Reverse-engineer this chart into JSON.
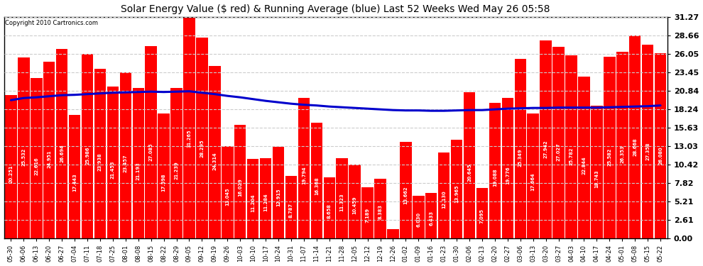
{
  "title": "Solar Energy Value ($ red) & Running Average (blue) Last 52 Weeks Wed May 26 05:58",
  "copyright": "Copyright 2010 Cartronics.com",
  "bar_color": "#ff0000",
  "line_color": "#0000cc",
  "background_color": "#ffffff",
  "plot_bg_color": "#ffffff",
  "grid_color": "#bbbbbb",
  "ylim": [
    0.0,
    31.27
  ],
  "yticks": [
    0.0,
    2.61,
    5.21,
    7.82,
    10.42,
    13.03,
    15.63,
    18.24,
    20.84,
    23.45,
    26.05,
    28.66,
    31.27
  ],
  "categories": [
    "05-30",
    "06-06",
    "06-13",
    "06-20",
    "06-27",
    "07-04",
    "07-11",
    "07-18",
    "07-25",
    "08-01",
    "08-08",
    "08-15",
    "08-22",
    "08-29",
    "09-05",
    "09-12",
    "09-19",
    "09-26",
    "10-03",
    "10-10",
    "10-17",
    "10-24",
    "10-31",
    "11-07",
    "11-14",
    "11-21",
    "11-28",
    "12-05",
    "12-12",
    "12-19",
    "12-26",
    "01-02",
    "01-09",
    "01-16",
    "01-23",
    "01-30",
    "02-06",
    "02-13",
    "02-20",
    "02-27",
    "03-06",
    "03-13",
    "03-20",
    "03-27",
    "04-03",
    "04-10",
    "04-17",
    "04-24",
    "05-01",
    "05-08",
    "05-15",
    "05-22"
  ],
  "values": [
    20.251,
    25.532,
    22.616,
    24.951,
    26.694,
    17.443,
    25.986,
    23.938,
    21.453,
    23.457,
    21.193,
    27.085,
    17.598,
    21.239,
    31.265,
    28.295,
    24.314,
    13.045,
    16.029,
    11.204,
    11.284,
    12.915,
    8.787,
    19.794,
    16.368,
    8.658,
    11.323,
    10.459,
    7.189,
    8.383,
    1.364,
    13.662,
    6.03,
    6.433,
    12.13,
    13.965,
    20.645,
    7.095,
    19.088,
    19.776,
    25.349,
    17.664,
    27.942,
    27.027,
    25.782,
    22.844,
    18.743,
    25.582,
    26.353,
    28.668,
    27.358,
    26.08
  ],
  "running_avg": [
    19.5,
    19.8,
    19.9,
    20.05,
    20.2,
    20.25,
    20.35,
    20.45,
    20.55,
    20.6,
    20.65,
    20.7,
    20.65,
    20.7,
    20.75,
    20.55,
    20.35,
    20.1,
    19.9,
    19.65,
    19.4,
    19.2,
    19.0,
    18.85,
    18.75,
    18.6,
    18.5,
    18.4,
    18.3,
    18.2,
    18.1,
    18.05,
    18.05,
    18.0,
    18.0,
    18.05,
    18.1,
    18.1,
    18.2,
    18.3,
    18.35,
    18.4,
    18.4,
    18.45,
    18.45,
    18.45,
    18.45,
    18.5,
    18.55,
    18.6,
    18.65,
    18.75
  ],
  "title_fontsize": 10,
  "copyright_fontsize": 6,
  "bar_label_fontsize": 4.8,
  "ytick_fontsize": 8,
  "xtick_fontsize": 6
}
